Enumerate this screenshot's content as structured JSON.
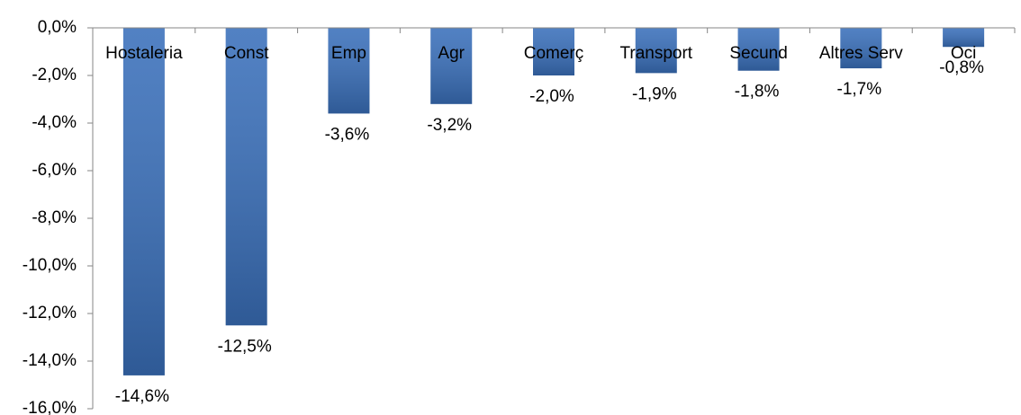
{
  "chart_data": {
    "type": "bar",
    "categories": [
      "Hostaleria",
      "Const",
      "Emp",
      "Agr",
      "Comerç",
      "Transport",
      "Secund",
      "Altres Serv",
      "Oci"
    ],
    "values": [
      -14.6,
      -12.5,
      -3.6,
      -3.2,
      -2.0,
      -1.9,
      -1.8,
      -1.7,
      -0.8
    ],
    "value_labels": [
      "-14,6%",
      "-12,5%",
      "-3,6%",
      "-3,2%",
      "-2,0%",
      "-1,9%",
      "-1,8%",
      "-1,7%",
      "-0,8%"
    ],
    "color": "#3a70bb",
    "ylim": [
      -16,
      0
    ],
    "yticks": [
      {
        "value": 0,
        "label": "0,0%"
      },
      {
        "value": -2,
        "label": "-2,0%"
      },
      {
        "value": -4,
        "label": "-4,0%"
      },
      {
        "value": -6,
        "label": "-6,0%"
      },
      {
        "value": -8,
        "label": "-8,0%"
      },
      {
        "value": -10,
        "label": "-10,0%"
      },
      {
        "value": -12,
        "label": "-12,0%"
      },
      {
        "value": -14,
        "label": "-14,0%"
      },
      {
        "value": -16,
        "label": "-16,0%"
      }
    ],
    "grid": false
  }
}
